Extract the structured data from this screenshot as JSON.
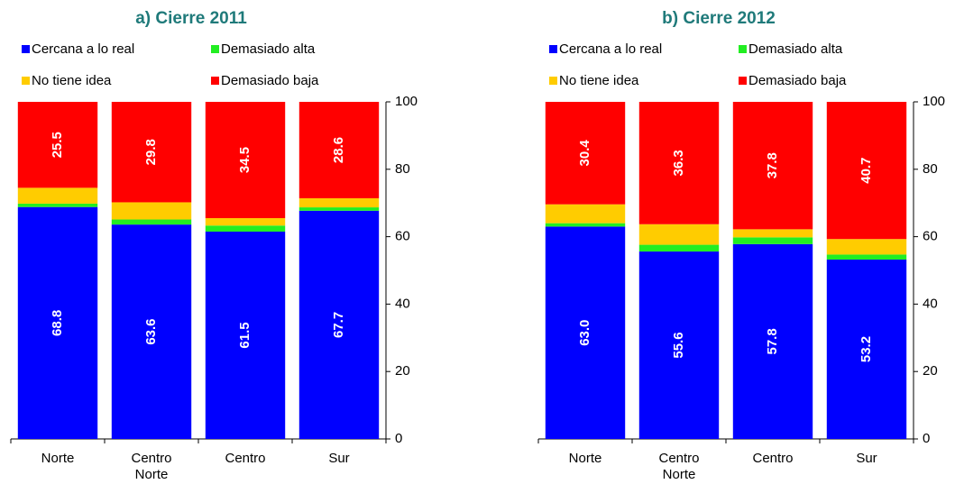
{
  "chart_data": [
    {
      "type": "stacked-bar",
      "title": "a) Cierre 2011",
      "categories": [
        "Norte",
        "Centro Norte",
        "Centro",
        "Sur"
      ],
      "series": [
        {
          "name": "Cercana a lo real",
          "color": "#0000ff",
          "values": [
            68.8,
            63.6,
            61.5,
            67.7
          ],
          "value_labels": [
            "68.8",
            "63.6",
            "61.5",
            "67.7"
          ]
        },
        {
          "name": "Demasiado alta",
          "color": "#22ee22",
          "values": [
            1.0,
            1.5,
            1.8,
            1.0
          ]
        },
        {
          "name": "No tiene idea",
          "color": "#ffcc00",
          "values": [
            4.7,
            5.1,
            2.2,
            2.7
          ]
        },
        {
          "name": "Demasiado baja",
          "color": "#ff0000",
          "values": [
            25.5,
            29.8,
            34.5,
            28.6
          ],
          "value_labels": [
            "25.5",
            "29.8",
            "34.5",
            "28.6"
          ]
        }
      ],
      "ylim": [
        0,
        100
      ],
      "yticks": [
        0,
        20,
        40,
        60,
        80,
        100
      ]
    },
    {
      "type": "stacked-bar",
      "title": "b) Cierre 2012",
      "categories": [
        "Norte",
        "Centro Norte",
        "Centro",
        "Sur"
      ],
      "series": [
        {
          "name": "Cercana a lo real",
          "color": "#0000ff",
          "values": [
            63.0,
            55.6,
            57.8,
            53.2
          ],
          "value_labels": [
            "63.0",
            "55.6",
            "57.8",
            "53.2"
          ]
        },
        {
          "name": "Demasiado alta",
          "color": "#22ee22",
          "values": [
            1.0,
            2.0,
            2.0,
            1.5
          ]
        },
        {
          "name": "No tiene idea",
          "color": "#ffcc00",
          "values": [
            5.6,
            6.1,
            2.4,
            4.6
          ]
        },
        {
          "name": "Demasiado baja",
          "color": "#ff0000",
          "values": [
            30.4,
            36.3,
            37.8,
            40.7
          ],
          "value_labels": [
            "30.4",
            "36.3",
            "37.8",
            "40.7"
          ]
        }
      ],
      "ylim": [
        0,
        100
      ],
      "yticks": [
        0,
        20,
        40,
        60,
        80,
        100
      ]
    }
  ]
}
